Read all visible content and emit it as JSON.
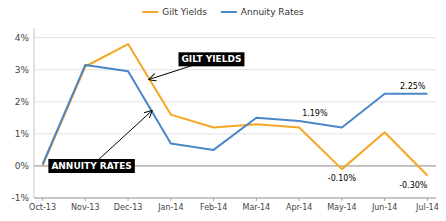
{
  "chart_data": {
    "type": "line",
    "categories": [
      "Oct-13",
      "Nov-13",
      "Dec-13",
      "Jan-14",
      "Feb-14",
      "Mar-14",
      "Apr-14",
      "May-14",
      "Jun-14",
      "Jul-14"
    ],
    "series": [
      {
        "name": "Gilt Yields",
        "color": "#F5A623",
        "values": [
          0.0,
          3.1,
          3.8,
          1.6,
          1.2,
          1.3,
          1.2,
          -0.1,
          1.05,
          -0.3
        ]
      },
      {
        "name": "Annuity Rates",
        "color": "#4A86C8",
        "values": [
          0.05,
          3.15,
          2.95,
          0.7,
          0.5,
          1.5,
          1.4,
          1.2,
          2.25,
          2.25
        ]
      }
    ],
    "ylim": [
      -1.0,
      4.3
    ],
    "yticks": [
      {
        "value": -1,
        "label": "-1%"
      },
      {
        "value": 0,
        "label": "0%"
      },
      {
        "value": 1,
        "label": "1%"
      },
      {
        "value": 2,
        "label": "2%"
      },
      {
        "value": 3,
        "label": "3%"
      },
      {
        "value": 4,
        "label": "4%"
      }
    ],
    "grid": true,
    "legend": "top",
    "annotations": [
      "GILT YIELDS",
      "ANNUITY RATES",
      "1.19%",
      "2.25%",
      "-0.10%",
      "-0.30%"
    ]
  }
}
